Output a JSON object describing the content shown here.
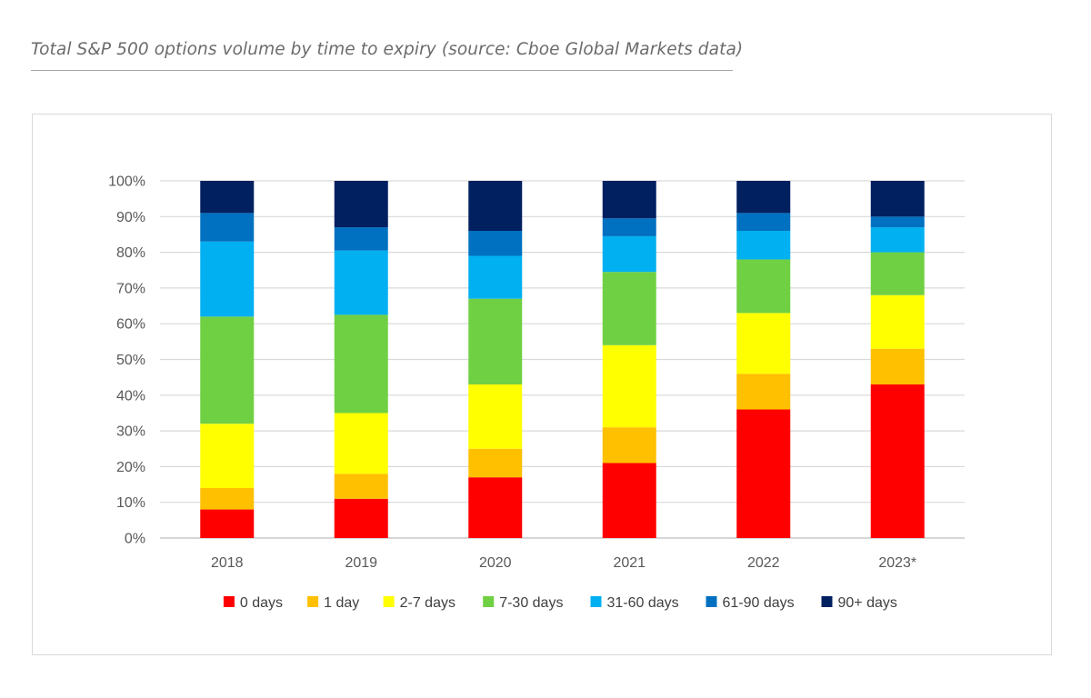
{
  "header": {
    "title": "Total S&P 500 options volume by time to expiry (source: Cboe Global Markets data)"
  },
  "chart_data": {
    "type": "bar",
    "stacked": true,
    "percent": true,
    "title": "",
    "xlabel": "",
    "ylabel": "",
    "ylim": [
      0,
      100
    ],
    "y_ticks": [
      0,
      10,
      20,
      30,
      40,
      50,
      60,
      70,
      80,
      90,
      100
    ],
    "y_tick_suffix": "%",
    "grid": true,
    "legend_position": "bottom",
    "categories": [
      "2018",
      "2019",
      "2020",
      "2021",
      "2022",
      "2023*"
    ],
    "series": [
      {
        "name": "0 days",
        "color": "#ff0000",
        "values": [
          8,
          11,
          17,
          21,
          36,
          43
        ]
      },
      {
        "name": "1 day",
        "color": "#ffc000",
        "values": [
          6,
          7,
          8,
          10,
          10,
          10
        ]
      },
      {
        "name": "2-7 days",
        "color": "#ffff00",
        "values": [
          18,
          17,
          18,
          23,
          17,
          15
        ]
      },
      {
        "name": "7-30 days",
        "color": "#70d043",
        "values": [
          30,
          27.5,
          24,
          20.5,
          15,
          12
        ]
      },
      {
        "name": "31-60 days",
        "color": "#00b0f0",
        "values": [
          21,
          18,
          12,
          10,
          8,
          7
        ]
      },
      {
        "name": "61-90 days",
        "color": "#0070c0",
        "values": [
          8,
          6.5,
          7,
          5,
          5,
          3
        ]
      },
      {
        "name": "90+ days",
        "color": "#002060",
        "values": [
          9,
          13,
          14,
          10.5,
          9,
          10
        ]
      }
    ]
  }
}
